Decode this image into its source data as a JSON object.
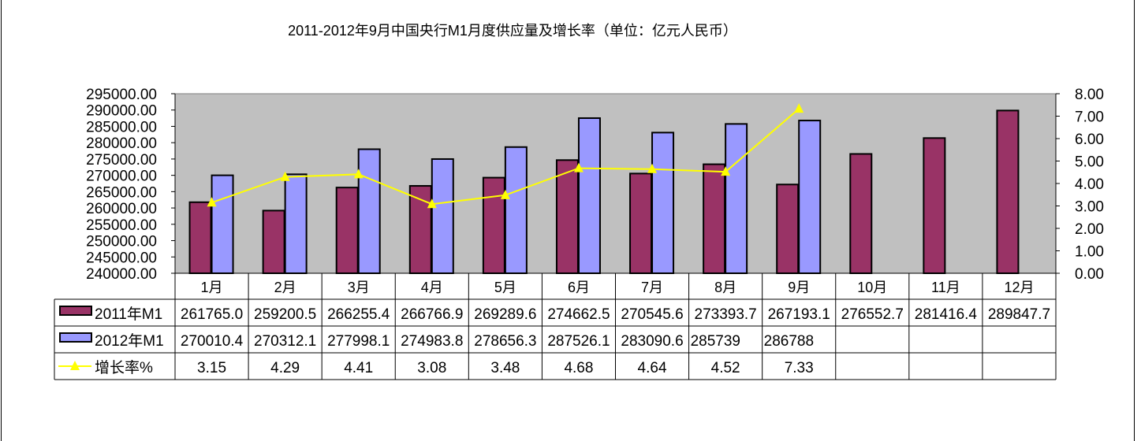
{
  "chart_data": {
    "type": "bar",
    "title": "2011-2012年9月中国央行M1月度供应量及增长率（单位：亿元人民币）",
    "categories": [
      "1月",
      "2月",
      "3月",
      "4月",
      "5月",
      "6月",
      "7月",
      "8月",
      "9月",
      "10月",
      "11月",
      "12月"
    ],
    "series": [
      {
        "name": "2011年M1",
        "type": "bar",
        "axis": "left",
        "color": "#993366",
        "values": [
          261765.0,
          259200.5,
          266255.4,
          266766.9,
          269289.6,
          274662.5,
          270545.6,
          273393.7,
          267193.1,
          276552.7,
          281416.4,
          289847.7
        ],
        "labels": [
          "261765.0",
          "259200.5",
          "266255.4",
          "266766.9",
          "269289.6",
          "274662.5",
          "270545.6",
          "273393.7",
          "267193.1",
          "276552.7",
          "281416.4",
          "289847.7"
        ]
      },
      {
        "name": "2012年M1",
        "type": "bar",
        "axis": "right_none",
        "color": "#9999FF",
        "values": [
          270010.4,
          270312.1,
          277998.1,
          274983.8,
          278656.3,
          287526.1,
          283090.6,
          285739,
          286788,
          null,
          null,
          null
        ],
        "labels": [
          "270010.4",
          "270312.1",
          "277998.1",
          "274983.8",
          "278656.3",
          "287526.1",
          "283090.6",
          "285739",
          "286788",
          "",
          "",
          ""
        ]
      },
      {
        "name": "增长率%",
        "type": "line",
        "axis": "right",
        "color": "#FFFF00",
        "values": [
          3.15,
          4.29,
          4.41,
          3.08,
          3.48,
          4.68,
          4.64,
          4.52,
          7.33,
          null,
          null,
          null
        ],
        "labels": [
          "3.15",
          "4.29",
          "4.41",
          "3.08",
          "3.48",
          "4.68",
          "4.64",
          "4.52",
          "7.33",
          "",
          "",
          ""
        ]
      }
    ],
    "ylim": [
      240000,
      295000
    ],
    "yticks": [
      "240000.00",
      "245000.00",
      "250000.00",
      "255000.00",
      "260000.00",
      "265000.00",
      "270000.00",
      "275000.00",
      "280000.00",
      "285000.00",
      "290000.00",
      "295000.00"
    ],
    "y2lim": [
      0,
      8
    ],
    "y2ticks": [
      "0.00",
      "1.00",
      "2.00",
      "3.00",
      "4.00",
      "5.00",
      "6.00",
      "7.00",
      "8.00"
    ],
    "plot_background": "#C0C0C0",
    "legend": "data-table-below",
    "grid": false
  }
}
